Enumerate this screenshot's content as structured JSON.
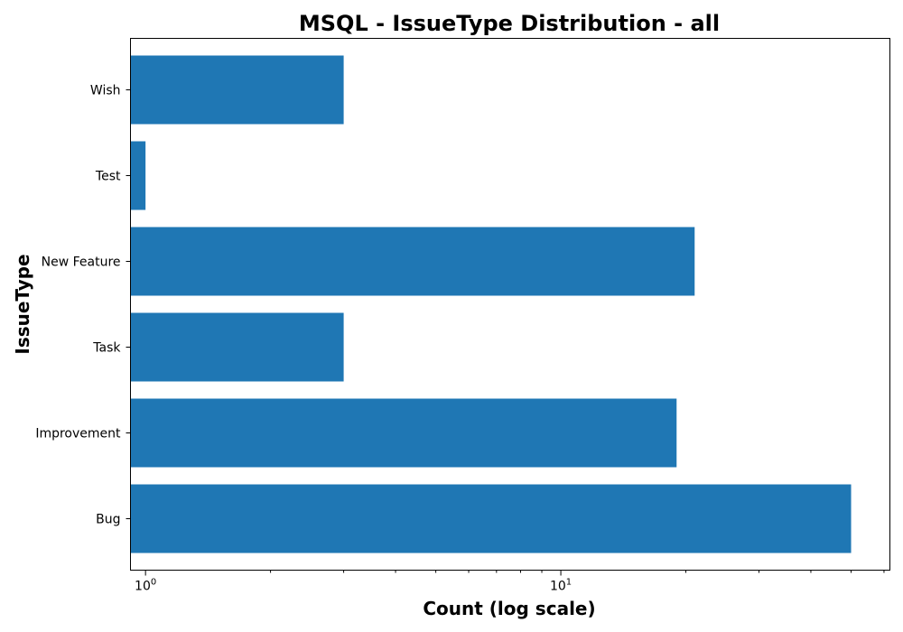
{
  "chart_data": {
    "type": "bar",
    "orientation": "horizontal",
    "title": "MSQL - IssueType Distribution - all",
    "xlabel": "Count (log scale)",
    "ylabel": "IssueType",
    "xscale": "log",
    "xlim": [
      0.92,
      62
    ],
    "categories": [
      "Bug",
      "Improvement",
      "Task",
      "New Feature",
      "Test",
      "Wish"
    ],
    "values": [
      50,
      19,
      3,
      21,
      1,
      3
    ],
    "x_major_ticks": [
      {
        "value": 1,
        "base": "10",
        "exponent": "0"
      },
      {
        "value": 10,
        "base": "10",
        "exponent": "1"
      }
    ],
    "bar_color": "#1f77b4",
    "grid": false,
    "legend": "none"
  }
}
